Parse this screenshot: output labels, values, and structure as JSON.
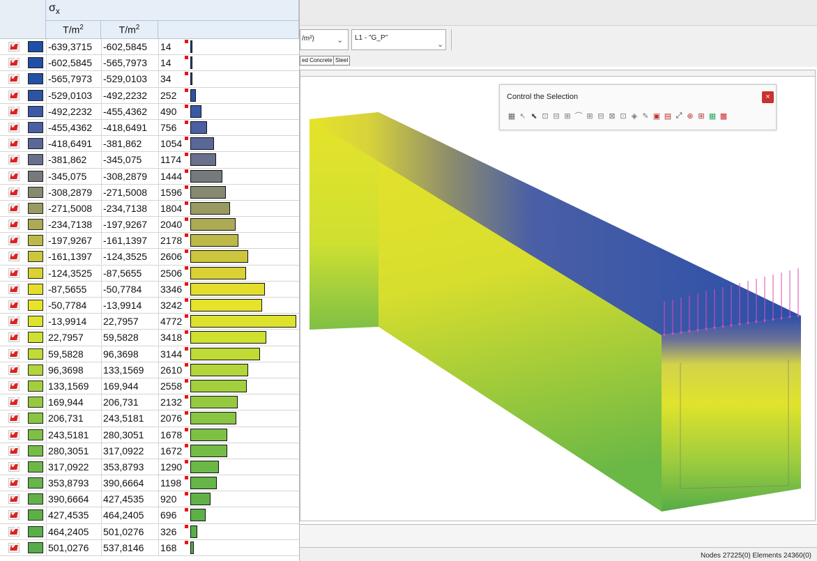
{
  "legend": {
    "header": {
      "symbol": "σ",
      "subscript": "x",
      "unit_base": "T/m",
      "unit_exp": "2"
    },
    "rows": [
      {
        "from": "-639,3715",
        "to": "-602,5845",
        "count": "14",
        "color": "#1f4fa8"
      },
      {
        "from": "-602,5845",
        "to": "-565,7973",
        "count": "14",
        "color": "#224fa6"
      },
      {
        "from": "-565,7973",
        "to": "-529,0103",
        "count": "34",
        "color": "#2650a3"
      },
      {
        "from": "-529,0103",
        "to": "-492,2232",
        "count": "252",
        "color": "#2d53a4"
      },
      {
        "from": "-492,2232",
        "to": "-455,4362",
        "count": "490",
        "color": "#3a5aa6"
      },
      {
        "from": "-455,4362",
        "to": "-418,6491",
        "count": "756",
        "color": "#4a60a3"
      },
      {
        "from": "-418,6491",
        "to": "-381,862",
        "count": "1054",
        "color": "#5c6799"
      },
      {
        "from": "-381,862",
        "to": "-345,075",
        "count": "1174",
        "color": "#6a6f8c"
      },
      {
        "from": "-345,075",
        "to": "-308,2879",
        "count": "1444",
        "color": "#767a7c"
      },
      {
        "from": "-308,2879",
        "to": "-271,5008",
        "count": "1596",
        "color": "#868a6f"
      },
      {
        "from": "-271,5008",
        "to": "-234,7138",
        "count": "1804",
        "color": "#989a62"
      },
      {
        "from": "-234,7138",
        "to": "-197,9267",
        "count": "2040",
        "color": "#acaa55"
      },
      {
        "from": "-197,9267",
        "to": "-161,1397",
        "count": "2178",
        "color": "#bdb948"
      },
      {
        "from": "-161,1397",
        "to": "-124,3525",
        "count": "2606",
        "color": "#ccc63c"
      },
      {
        "from": "-124,3525",
        "to": "-87,5655",
        "count": "2506",
        "color": "#dad233"
      },
      {
        "from": "-87,5655",
        "to": "-50,7784",
        "count": "3346",
        "color": "#e3de2c"
      },
      {
        "from": "-50,7784",
        "to": "-13,9914",
        "count": "3242",
        "color": "#e6e32a"
      },
      {
        "from": "-13,9914",
        "to": "22,7957",
        "count": "4772",
        "color": "#dde32d"
      },
      {
        "from": "22,7957",
        "to": "59,5828",
        "count": "3418",
        "color": "#cfe031"
      },
      {
        "from": "59,5828",
        "to": "96,3698",
        "count": "3144",
        "color": "#c1db35"
      },
      {
        "from": "96,3698",
        "to": "133,1569",
        "count": "2610",
        "color": "#b2d539"
      },
      {
        "from": "133,1569",
        "to": "169,944",
        "count": "2558",
        "color": "#a4cf3d"
      },
      {
        "from": "169,944",
        "to": "206,731",
        "count": "2132",
        "color": "#96c940"
      },
      {
        "from": "206,731",
        "to": "243,5181",
        "count": "2076",
        "color": "#89c443"
      },
      {
        "from": "243,5181",
        "to": "280,3051",
        "count": "1678",
        "color": "#7ec045"
      },
      {
        "from": "280,3051",
        "to": "317,0922",
        "count": "1672",
        "color": "#74bc46"
      },
      {
        "from": "317,0922",
        "to": "353,8793",
        "count": "1290",
        "color": "#6cb847"
      },
      {
        "from": "353,8793",
        "to": "390,6664",
        "count": "1198",
        "color": "#65b548"
      },
      {
        "from": "390,6664",
        "to": "427,4535",
        "count": "920",
        "color": "#60b248"
      },
      {
        "from": "427,4535",
        "to": "464,2405",
        "count": "696",
        "color": "#5cb048"
      },
      {
        "from": "464,2405",
        "to": "501,0276",
        "count": "326",
        "color": "#58ae48"
      },
      {
        "from": "501,0276",
        "to": "537,8146",
        "count": "168",
        "color": "#55ac48"
      }
    ],
    "max_count": 4772
  },
  "toolbar": {
    "unit_combo_value": "/m²)",
    "load_combo_value": "L1 - \"G_P\"",
    "tab_concrete": "ed Concrete",
    "tab_steel": "Steel"
  },
  "control_panel": {
    "title": "Control the Selection",
    "close_label": "×",
    "icons": [
      "select-all-icon",
      "select-nodes-icon",
      "pointer-icon",
      "window-select-icon",
      "polygon-select-icon",
      "cross-select-icon",
      "line-select-icon",
      "lasso-select-icon",
      "group-select-icon",
      "layer-select-icon",
      "filter-select-icon",
      "element-select-icon",
      "brush-select-icon",
      "pick-icon",
      "invert-select-icon",
      "connect-icon",
      "split-icon",
      "grid-select-icon",
      "table-select-icon",
      "color-select-icon"
    ],
    "glyphs": [
      "▦",
      "↖",
      "⬉",
      "⊡",
      "⊟",
      "⊞",
      "⌒",
      "⊞",
      "⊟",
      "⊠",
      "⊡",
      "◈",
      "✎",
      "▣",
      "▤",
      "⤢",
      "⊕",
      "⊞",
      "▦",
      "▩"
    ]
  },
  "status": {
    "text": "Nodes 27225(0) Elements 24360(0)"
  },
  "colors": {
    "blue": "#2a4fa8",
    "yellow": "#e6e32a",
    "green": "#55ac48",
    "load_arrow": "#e24ab8"
  }
}
